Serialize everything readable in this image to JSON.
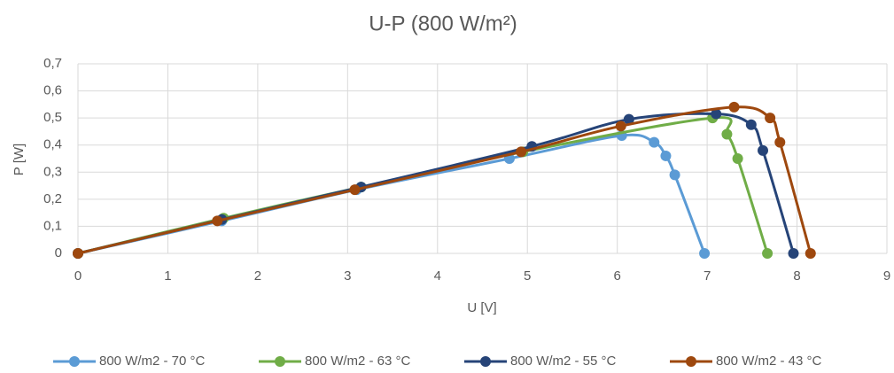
{
  "chart_data": {
    "type": "scatter-smooth",
    "title": "U-P (800 W/m²)",
    "x_label": "U [V]",
    "y_label": "P [W]",
    "xlim": [
      0,
      9
    ],
    "xticks": [
      0,
      1,
      2,
      3,
      4,
      5,
      6,
      7,
      8,
      9
    ],
    "ylim": [
      0,
      0.7
    ],
    "yticks": [
      0,
      {
        "value": 0.1,
        "label": "0,1"
      },
      {
        "value": 0.2,
        "label": "0,2"
      },
      {
        "value": 0.3,
        "label": "0,3"
      },
      {
        "value": 0.4,
        "label": "0,4"
      },
      {
        "value": 0.5,
        "label": "0,5"
      },
      {
        "value": 0.6,
        "label": "0,6"
      },
      {
        "value": 0.7,
        "label": "0,7"
      }
    ],
    "grid": true,
    "legend": "bottom",
    "series": [
      {
        "name": "800 W/m2 - 70 °C",
        "color": "#5b9bd5",
        "x": [
          0,
          1.6,
          3.1,
          4.8,
          6.05,
          6.41,
          6.54,
          6.64,
          6.97
        ],
        "values": [
          0,
          0.12,
          0.235,
          0.35,
          0.435,
          0.41,
          0.36,
          0.29,
          0
        ]
      },
      {
        "name": "800 W/m2 - 63 °C",
        "color": "#70ad47",
        "x": [
          0,
          1.62,
          3.15,
          4.95,
          7.06,
          7.22,
          7.34,
          7.67
        ],
        "values": [
          0,
          0.13,
          0.245,
          0.375,
          0.5,
          0.44,
          0.35,
          0
        ]
      },
      {
        "name": "800 W/m2 - 55 °C",
        "color": "#264478",
        "x": [
          0,
          1.6,
          3.15,
          5.05,
          6.13,
          7.1,
          7.49,
          7.62,
          7.96
        ],
        "values": [
          0,
          0.125,
          0.245,
          0.395,
          0.495,
          0.515,
          0.475,
          0.38,
          0
        ]
      },
      {
        "name": "800 W/m2 - 43 °C",
        "color": "#9e480e",
        "x": [
          0,
          1.55,
          3.08,
          4.93,
          6.04,
          7.3,
          7.7,
          7.81,
          8.15
        ],
        "values": [
          0,
          0.12,
          0.235,
          0.375,
          0.47,
          0.54,
          0.5,
          0.41,
          0
        ]
      }
    ]
  }
}
